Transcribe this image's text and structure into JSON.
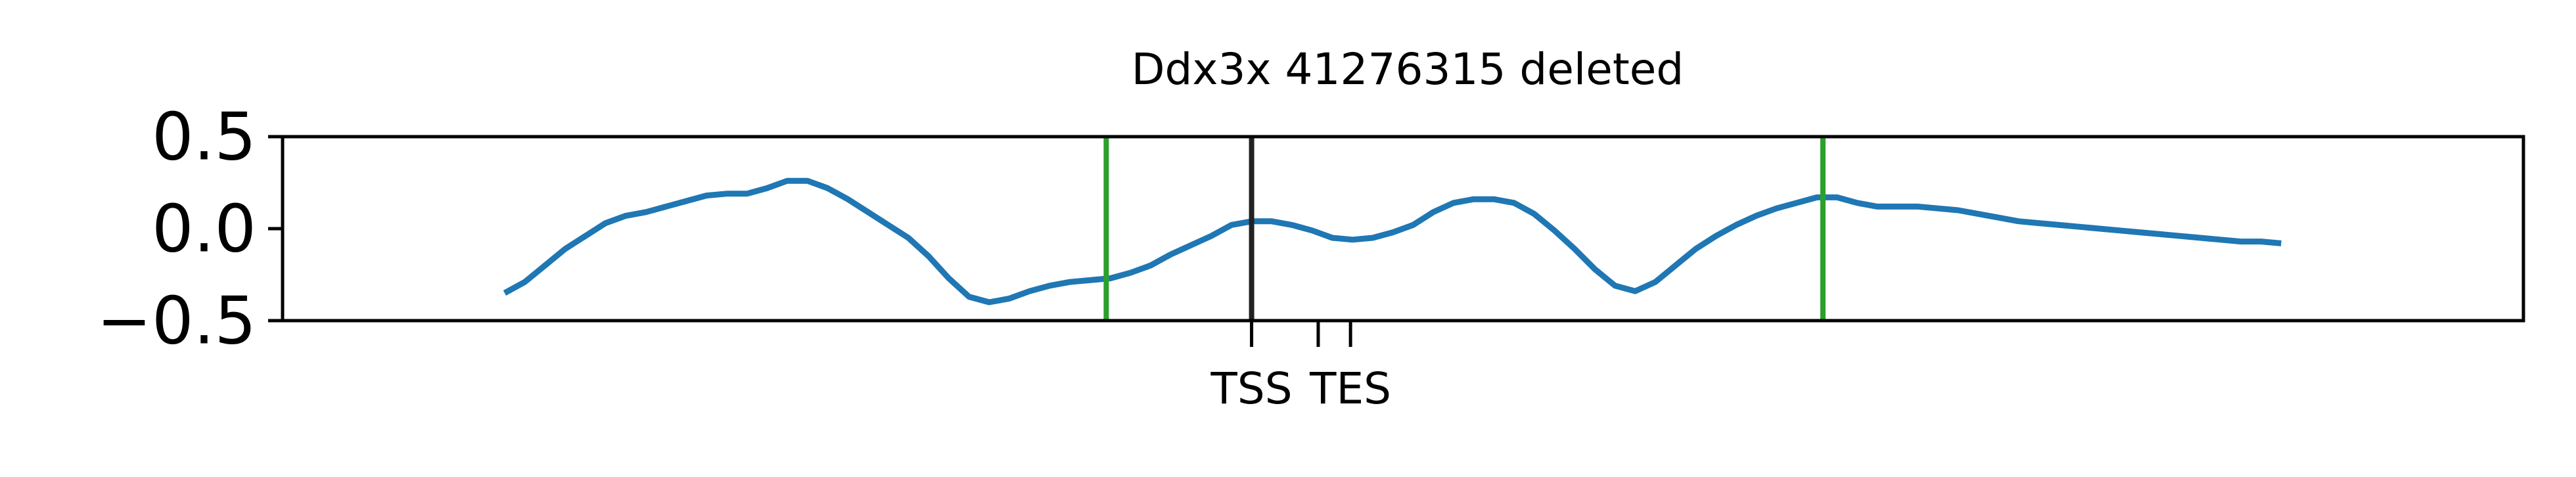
{
  "chart_data": {
    "type": "line",
    "title": "Ddx3x 41276315 deleted",
    "xlabel": "",
    "ylabel": "",
    "ylim": [
      -0.5,
      0.5
    ],
    "xlim": [
      -11,
      100
    ],
    "y_ticks": [
      {
        "value": 0.5,
        "label": "0.5"
      },
      {
        "value": 0.0,
        "label": "0.0"
      },
      {
        "value": -0.5,
        "label": "−0.5"
      }
    ],
    "x_ticks": [
      {
        "value": 37,
        "label": "TSS"
      },
      {
        "value": 40.3,
        "label": ""
      },
      {
        "value": 41.9,
        "label": "TES"
      }
    ],
    "grid": false,
    "legend": "none",
    "series": [
      {
        "color": "#1f77b4",
        "x": [
          0,
          1,
          2,
          3,
          4,
          5,
          6,
          7,
          8,
          9,
          10,
          11,
          12,
          13,
          14,
          15,
          16,
          17,
          18,
          19,
          20,
          21,
          22,
          23,
          24,
          25,
          26,
          27,
          28,
          29,
          30,
          31,
          32,
          33,
          34,
          35,
          36,
          37,
          38,
          39,
          40,
          41,
          42,
          43,
          44,
          45,
          46,
          47,
          48,
          49,
          50,
          51,
          52,
          53,
          54,
          55,
          56,
          57,
          58,
          59,
          60,
          61,
          62,
          63,
          64,
          65,
          66,
          67,
          68,
          69,
          70,
          71,
          72,
          73,
          74,
          75,
          76,
          77,
          78,
          79,
          80,
          81,
          82,
          83,
          84,
          85,
          86,
          87,
          88
        ],
        "y": [
          -0.35,
          -0.29,
          -0.2,
          -0.11,
          -0.04,
          0.03,
          0.07,
          0.09,
          0.12,
          0.15,
          0.18,
          0.19,
          0.19,
          0.22,
          0.26,
          0.26,
          0.22,
          0.16,
          0.09,
          0.02,
          -0.05,
          -0.15,
          -0.27,
          -0.37,
          -0.4,
          -0.38,
          -0.34,
          -0.31,
          -0.29,
          -0.28,
          -0.27,
          -0.24,
          -0.2,
          -0.14,
          -0.09,
          -0.04,
          0.02,
          0.04,
          0.04,
          0.02,
          -0.01,
          -0.05,
          -0.06,
          -0.05,
          -0.02,
          0.02,
          0.09,
          0.14,
          0.16,
          0.16,
          0.14,
          0.08,
          -0.01,
          -0.11,
          -0.22,
          -0.31,
          -0.34,
          -0.29,
          -0.2,
          -0.11,
          -0.04,
          0.02,
          0.07,
          0.11,
          0.14,
          0.17,
          0.17,
          0.14,
          0.12,
          0.12,
          0.12,
          0.11,
          0.1,
          0.08,
          0.06,
          0.04,
          0.03,
          0.02,
          0.01,
          0.0,
          -0.01,
          -0.02,
          -0.03,
          -0.04,
          -0.05,
          -0.06,
          -0.07,
          -0.07,
          -0.08
        ]
      }
    ],
    "vlines": [
      {
        "x": 29.8,
        "color": "#2ca02c"
      },
      {
        "x": 37,
        "color": "#222222"
      },
      {
        "x": 65.3,
        "color": "#2ca02c"
      }
    ]
  }
}
